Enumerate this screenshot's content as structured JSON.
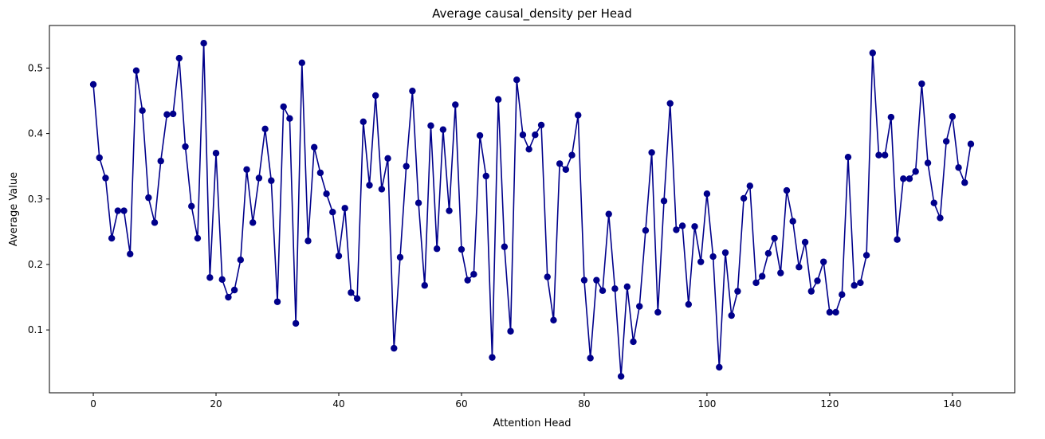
{
  "chart_data": {
    "type": "line",
    "title": "Average causal_density per Head",
    "xlabel": "Attention Head",
    "ylabel": "Average Value",
    "xlim": [
      -7.15,
      150.15
    ],
    "ylim": [
      0.004,
      0.565
    ],
    "xticks": [
      0,
      20,
      40,
      60,
      80,
      100,
      120,
      140
    ],
    "xtick_labels": [
      "0",
      "20",
      "40",
      "60",
      "80",
      "100",
      "120",
      "140"
    ],
    "yticks": [
      0.1,
      0.2,
      0.3,
      0.4,
      0.5
    ],
    "ytick_labels": [
      "0.1",
      "0.2",
      "0.3",
      "0.4",
      "0.5"
    ],
    "grid": false,
    "legend": "none",
    "marker": "circle",
    "color": "#00008b",
    "series": [
      {
        "x": [
          0,
          1,
          2,
          3,
          4,
          5,
          6,
          7,
          8,
          9,
          10,
          11,
          12,
          13,
          14,
          15,
          16,
          17,
          18,
          19,
          20,
          21,
          22,
          23,
          24,
          25,
          26,
          27,
          28,
          29,
          30,
          31,
          32,
          33,
          34,
          35,
          36,
          37,
          38,
          39,
          40,
          41,
          42,
          43,
          44,
          45,
          46,
          47,
          48,
          49,
          50,
          51,
          52,
          53,
          54,
          55,
          56,
          57,
          58,
          59,
          60,
          61,
          62,
          63,
          64,
          65,
          66,
          67,
          68,
          69,
          70,
          71,
          72,
          73,
          74,
          75,
          76,
          77,
          78,
          79,
          80,
          81,
          82,
          83,
          84,
          85,
          86,
          87,
          88,
          89,
          90,
          91,
          92,
          93,
          94,
          95,
          96,
          97,
          98,
          99,
          100,
          101,
          102,
          103,
          104,
          105,
          106,
          107,
          108,
          109,
          110,
          111,
          112,
          113,
          114,
          115,
          116,
          117,
          118,
          119,
          120,
          121,
          122,
          123,
          124,
          125,
          126,
          127,
          128,
          129,
          130,
          131,
          132,
          133,
          134,
          135,
          136,
          137,
          138,
          139,
          140,
          141,
          142,
          143
        ],
        "values": [
          0.475,
          0.363,
          0.332,
          0.24,
          0.282,
          0.282,
          0.216,
          0.496,
          0.435,
          0.302,
          0.264,
          0.358,
          0.429,
          0.43,
          0.515,
          0.38,
          0.289,
          0.24,
          0.538,
          0.18,
          0.37,
          0.177,
          0.15,
          0.161,
          0.207,
          0.345,
          0.264,
          0.332,
          0.407,
          0.328,
          0.143,
          0.441,
          0.423,
          0.11,
          0.508,
          0.236,
          0.379,
          0.34,
          0.308,
          0.28,
          0.213,
          0.286,
          0.157,
          0.148,
          0.418,
          0.321,
          0.458,
          0.315,
          0.362,
          0.072,
          0.211,
          0.35,
          0.465,
          0.294,
          0.168,
          0.412,
          0.224,
          0.406,
          0.282,
          0.444,
          0.223,
          0.176,
          0.185,
          0.397,
          0.335,
          0.058,
          0.452,
          0.227,
          0.098,
          0.482,
          0.398,
          0.376,
          0.398,
          0.413,
          0.181,
          0.115,
          0.354,
          0.345,
          0.367,
          0.428,
          0.176,
          0.057,
          0.176,
          0.16,
          0.277,
          0.163,
          0.029,
          0.166,
          0.082,
          0.136,
          0.252,
          0.371,
          0.127,
          0.297,
          0.446,
          0.253,
          0.259,
          0.139,
          0.258,
          0.204,
          0.308,
          0.212,
          0.043,
          0.218,
          0.122,
          0.159,
          0.301,
          0.32,
          0.172,
          0.182,
          0.217,
          0.24,
          0.187,
          0.313,
          0.266,
          0.196,
          0.234,
          0.159,
          0.175,
          0.204,
          0.127,
          0.127,
          0.154,
          0.364,
          0.168,
          0.172,
          0.214,
          0.523,
          0.367,
          0.367,
          0.425,
          0.238,
          0.331,
          0.331,
          0.342,
          0.476,
          0.355,
          0.294,
          0.271,
          0.388,
          0.426,
          0.348,
          0.325,
          0.384
        ]
      }
    ]
  }
}
